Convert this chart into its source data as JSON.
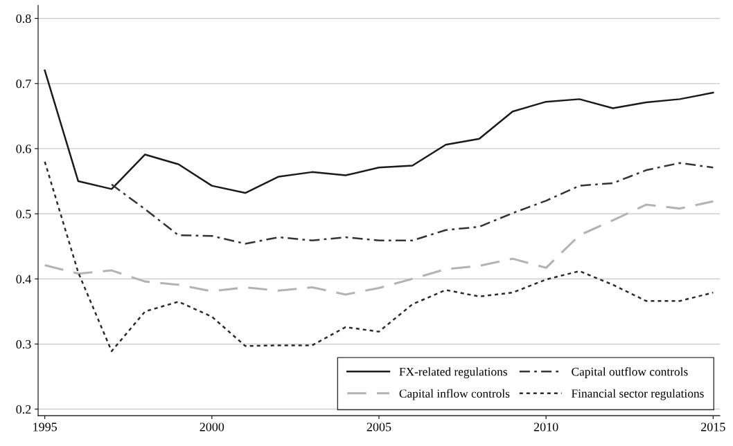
{
  "chart_data": {
    "type": "line",
    "x": [
      1995,
      1996,
      1997,
      1998,
      1999,
      2000,
      2001,
      2002,
      2003,
      2004,
      2005,
      2006,
      2007,
      2008,
      2009,
      2010,
      2011,
      2012,
      2013,
      2014,
      2015
    ],
    "series": [
      {
        "name": "FX-related regulations",
        "color": "#1a1a1a",
        "line_style": "solid",
        "values": [
          0.72,
          0.55,
          0.538,
          0.591,
          0.576,
          0.543,
          0.532,
          0.557,
          0.564,
          0.559,
          0.571,
          0.574,
          0.606,
          0.615,
          0.657,
          0.672,
          0.676,
          0.662,
          0.671,
          0.676,
          0.686
        ]
      },
      {
        "name": "Capital outflow controls",
        "color": "#333333",
        "line_style": "dashdot",
        "values": [
          null,
          null,
          0.545,
          0.507,
          0.467,
          0.466,
          0.454,
          0.464,
          0.459,
          0.464,
          0.459,
          0.459,
          0.475,
          0.48,
          0.501,
          0.52,
          0.543,
          0.547,
          0.567,
          0.578,
          0.571
        ]
      },
      {
        "name": "Capital inflow controls",
        "color": "#b3b3b3",
        "line_style": "dashed",
        "values": [
          0.421,
          0.408,
          0.413,
          0.396,
          0.391,
          0.381,
          0.387,
          0.382,
          0.387,
          0.376,
          0.386,
          0.4,
          0.415,
          0.42,
          0.431,
          0.417,
          0.467,
          0.49,
          0.514,
          0.508,
          0.519
        ]
      },
      {
        "name": "Financial sector regulations",
        "color": "#2a2a2a",
        "line_style": "dotted",
        "values": [
          0.58,
          0.41,
          0.289,
          0.35,
          0.365,
          0.342,
          0.297,
          0.298,
          0.298,
          0.326,
          0.319,
          0.361,
          0.383,
          0.373,
          0.379,
          0.399,
          0.412,
          0.391,
          0.366,
          0.366,
          0.379
        ]
      }
    ],
    "xlim": [
      1994.8,
      2015.2
    ],
    "xticks": [
      1995,
      2000,
      2005,
      2010,
      2015
    ],
    "ylim": [
      0.19,
      0.82
    ],
    "yticks": [
      0.2,
      0.3,
      0.4,
      0.5,
      0.6,
      0.7,
      0.8
    ],
    "grid": "y",
    "legend": "bottom right",
    "marker": "none"
  }
}
